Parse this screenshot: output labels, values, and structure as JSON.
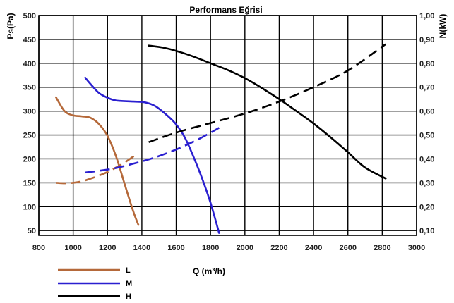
{
  "chart_data": {
    "type": "line",
    "title": "Performans Eğrisi",
    "xlabel": "Q (m³/h)",
    "ylabel": "Ps(Pa)",
    "y2label": "N(kW)",
    "xlim": [
      800,
      3000
    ],
    "ylim": [
      40,
      500
    ],
    "y2lim": [
      0.08,
      1.0
    ],
    "x_ticks": [
      "800",
      "1000",
      "1200",
      "1400",
      "1600",
      "1800",
      "2000",
      "2200",
      "2400",
      "2600",
      "2800",
      "3000"
    ],
    "y_ticks": [
      "50",
      "100",
      "150",
      "200",
      "250",
      "300",
      "350",
      "400",
      "450",
      "500"
    ],
    "y2_ticks": [
      "0,10",
      "0,20",
      "0,30",
      "0,40",
      "0,50",
      "0,60",
      "0,70",
      "0,80",
      "0,90",
      "1,00"
    ],
    "grid": true,
    "legend_position": "bottom-left",
    "colors": {
      "L": "#b5693a",
      "M": "#2a1fd0",
      "H": "#000000"
    },
    "series": [
      {
        "name": "L",
        "pressure": [
          [
            900,
            329
          ],
          [
            950,
            300
          ],
          [
            1000,
            291
          ],
          [
            1050,
            289
          ],
          [
            1100,
            286
          ],
          [
            1150,
            273
          ],
          [
            1200,
            248
          ],
          [
            1250,
            205
          ],
          [
            1300,
            147
          ],
          [
            1350,
            90
          ],
          [
            1380,
            62
          ]
        ],
        "power": [
          [
            900,
            0.3
          ],
          [
            950,
            0.298
          ],
          [
            1000,
            0.3
          ],
          [
            1050,
            0.306
          ],
          [
            1100,
            0.317
          ],
          [
            1150,
            0.33
          ],
          [
            1200,
            0.345
          ],
          [
            1250,
            0.364
          ],
          [
            1300,
            0.385
          ],
          [
            1360,
            0.415
          ]
        ]
      },
      {
        "name": "M",
        "pressure": [
          [
            1070,
            370
          ],
          [
            1100,
            357
          ],
          [
            1150,
            338
          ],
          [
            1200,
            328
          ],
          [
            1250,
            322
          ],
          [
            1350,
            320
          ],
          [
            1420,
            318
          ],
          [
            1480,
            310
          ],
          [
            1550,
            290
          ],
          [
            1600,
            272
          ],
          [
            1650,
            245
          ],
          [
            1700,
            205
          ],
          [
            1750,
            160
          ],
          [
            1800,
            108
          ],
          [
            1850,
            45
          ]
        ],
        "power": [
          [
            1070,
            0.343
          ],
          [
            1150,
            0.35
          ],
          [
            1250,
            0.362
          ],
          [
            1350,
            0.38
          ],
          [
            1450,
            0.4
          ],
          [
            1550,
            0.425
          ],
          [
            1650,
            0.455
          ],
          [
            1750,
            0.49
          ],
          [
            1850,
            0.53
          ]
        ]
      },
      {
        "name": "H",
        "pressure": [
          [
            1440,
            437
          ],
          [
            1520,
            433
          ],
          [
            1600,
            426
          ],
          [
            1700,
            414
          ],
          [
            1800,
            400
          ],
          [
            1900,
            386
          ],
          [
            2000,
            369
          ],
          [
            2100,
            348
          ],
          [
            2200,
            325
          ],
          [
            2300,
            300
          ],
          [
            2400,
            274
          ],
          [
            2500,
            245
          ],
          [
            2600,
            214
          ],
          [
            2700,
            182
          ],
          [
            2820,
            159
          ]
        ],
        "power": [
          [
            1440,
            0.47
          ],
          [
            1600,
            0.51
          ],
          [
            1800,
            0.55
          ],
          [
            2000,
            0.59
          ],
          [
            2200,
            0.64
          ],
          [
            2400,
            0.7
          ],
          [
            2600,
            0.77
          ],
          [
            2820,
            0.88
          ]
        ]
      }
    ]
  }
}
